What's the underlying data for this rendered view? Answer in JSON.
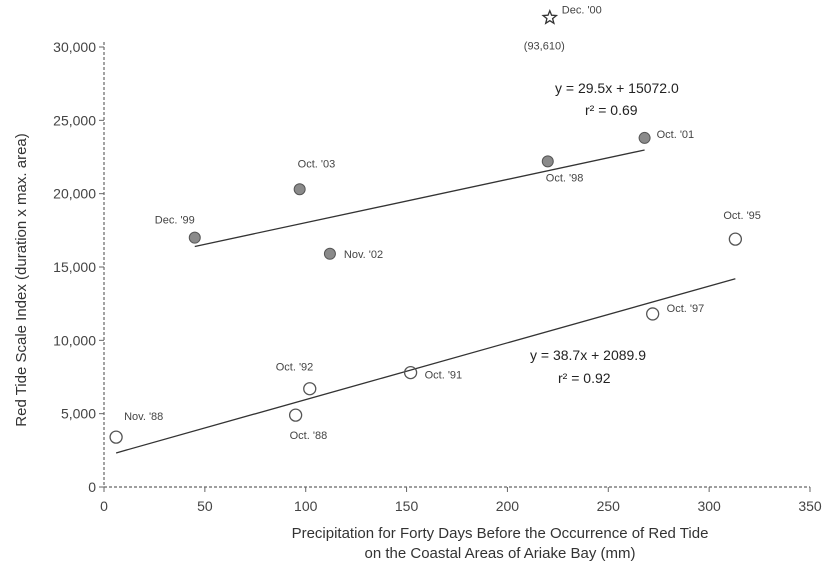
{
  "chart_data": {
    "type": "scatter",
    "xlabel": [
      "Precipitation for Forty Days Before the Occurrence of Red Tide",
      "on the Coastal Areas of Ariake Bay (mm)"
    ],
    "ylabel": "Red Tide Scale Index (duration x max. area)",
    "xlim": [
      0,
      350
    ],
    "ylim": [
      0,
      30000
    ],
    "x_ticks": [
      0,
      50,
      100,
      150,
      200,
      250,
      300,
      350
    ],
    "x_tick_labels": [
      "0",
      "50",
      "100",
      "150",
      "200",
      "250",
      "300",
      "350"
    ],
    "y_ticks": [
      0,
      5000,
      10000,
      15000,
      20000,
      25000,
      30000
    ],
    "y_tick_labels": [
      "0",
      "5,000",
      "10,000",
      "15,000",
      "20,000",
      "25,000",
      "30,000"
    ],
    "colors": {
      "filled": "#8a8a8a",
      "line": "#333333",
      "open": "#555555"
    },
    "series": [
      {
        "marker": "filled-circle",
        "points": [
          {
            "x": 45,
            "y": 17000,
            "label": "Dec. '99"
          },
          {
            "x": 97,
            "y": 20300,
            "label": "Oct. '03"
          },
          {
            "x": 112,
            "y": 15900,
            "label": "Nov. '02"
          },
          {
            "x": 220,
            "y": 22200,
            "label": "Oct. '98"
          },
          {
            "x": 268,
            "y": 23800,
            "label": "Oct. '01"
          }
        ],
        "regression": {
          "equation": "y = 29.5x + 15072.0",
          "r2": "r² = 0.69",
          "slope": 29.5,
          "intercept": 15072.0,
          "x_range": [
            45,
            268
          ]
        }
      },
      {
        "marker": "open-circle",
        "points": [
          {
            "x": 6,
            "y": 3400,
            "label": "Nov. '88"
          },
          {
            "x": 95,
            "y": 4900,
            "label": "Oct. '88"
          },
          {
            "x": 102,
            "y": 6700,
            "label": "Oct. '92"
          },
          {
            "x": 152,
            "y": 7800,
            "label": "Oct. '91"
          },
          {
            "x": 272,
            "y": 11800,
            "label": "Oct. '97"
          },
          {
            "x": 313,
            "y": 16900,
            "label": "Oct. '95"
          }
        ],
        "regression": {
          "equation": "y = 38.7x + 2089.9",
          "r2": "r² = 0.92",
          "slope": 38.7,
          "intercept": 2089.9,
          "x_range": [
            6,
            313
          ]
        }
      },
      {
        "marker": "star",
        "points": [
          {
            "x": 221,
            "y": 32000,
            "label": "Dec. '00",
            "value_label": "(93,610)"
          }
        ]
      }
    ]
  }
}
